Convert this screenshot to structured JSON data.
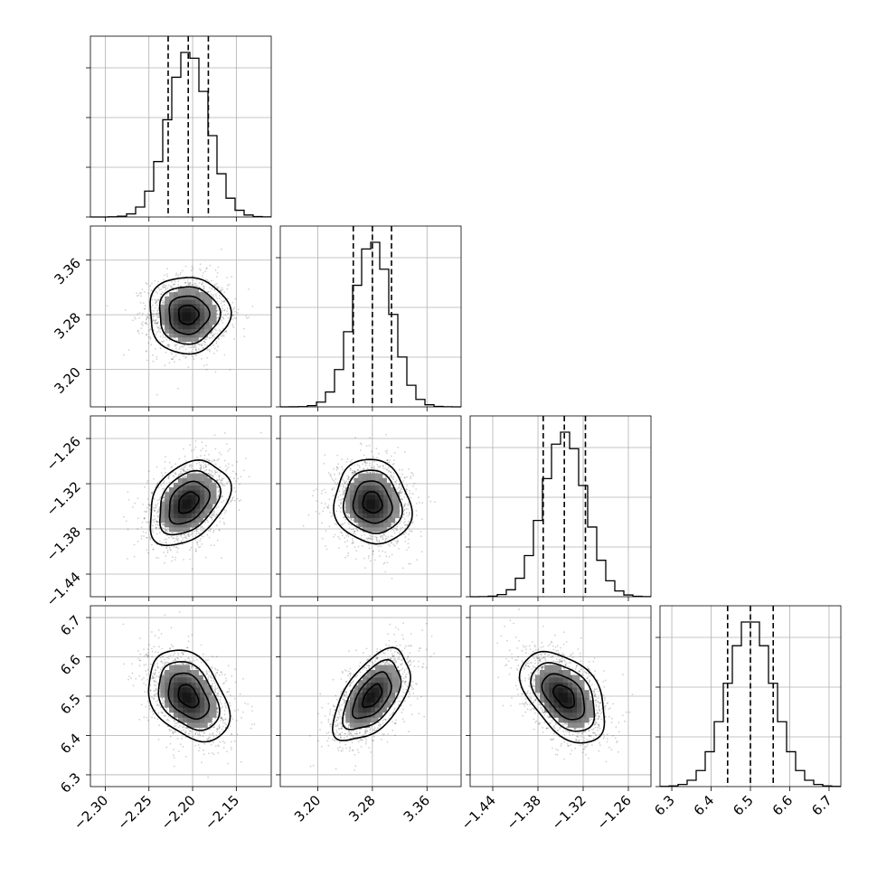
{
  "chart_data": {
    "type": "corner",
    "parameters": [
      {
        "index": 0,
        "mean": -2.205,
        "sd": 0.023,
        "range": [
          -2.317,
          -2.11
        ],
        "ticks": [
          -2.3,
          -2.25,
          -2.2,
          -2.15
        ],
        "tick_labels": [
          "−2.30",
          "−2.25",
          "−2.20",
          "−2.15"
        ],
        "quantiles": [
          -2.228,
          -2.205,
          -2.182
        ]
      },
      {
        "index": 1,
        "mean": 3.28,
        "sd": 0.028,
        "range": [
          3.145,
          3.41
        ],
        "ticks": [
          3.2,
          3.28,
          3.36
        ],
        "tick_labels": [
          "3.20",
          "3.28",
          "3.36"
        ],
        "quantiles": [
          3.252,
          3.28,
          3.308
        ]
      },
      {
        "index": 2,
        "mean": -1.345,
        "sd": 0.028,
        "range": [
          -1.47,
          -1.23
        ],
        "ticks": [
          -1.44,
          -1.38,
          -1.32,
          -1.26
        ],
        "tick_labels": [
          "−1.44",
          "−1.38",
          "−1.32",
          "−1.26"
        ],
        "quantiles": [
          -1.373,
          -1.345,
          -1.317
        ]
      },
      {
        "index": 3,
        "mean": 6.5,
        "sd": 0.058,
        "range": [
          6.27,
          6.73
        ],
        "ticks": [
          6.3,
          6.4,
          6.5,
          6.6,
          6.7
        ],
        "tick_labels": [
          "6.3",
          "6.4",
          "6.5",
          "6.6",
          "6.7"
        ],
        "quantiles": [
          6.442,
          6.5,
          6.558
        ]
      }
    ],
    "correlations": [
      {
        "pair": [
          0,
          1
        ],
        "rho": 0.0
      },
      {
        "pair": [
          0,
          2
        ],
        "rho": 0.35
      },
      {
        "pair": [
          1,
          2
        ],
        "rho": -0.1
      },
      {
        "pair": [
          0,
          3
        ],
        "rho": -0.35
      },
      {
        "pair": [
          1,
          3
        ],
        "rho": 0.55
      },
      {
        "pair": [
          2,
          3
        ],
        "rho": -0.45
      }
    ],
    "histogram_bins": 20,
    "quantile_levels": [
      0.16,
      0.5,
      0.84
    ],
    "contour_levels": [
      0.5,
      1.0,
      1.5,
      2.0
    ],
    "grid": true,
    "diagonal_ytick_labels": false
  }
}
